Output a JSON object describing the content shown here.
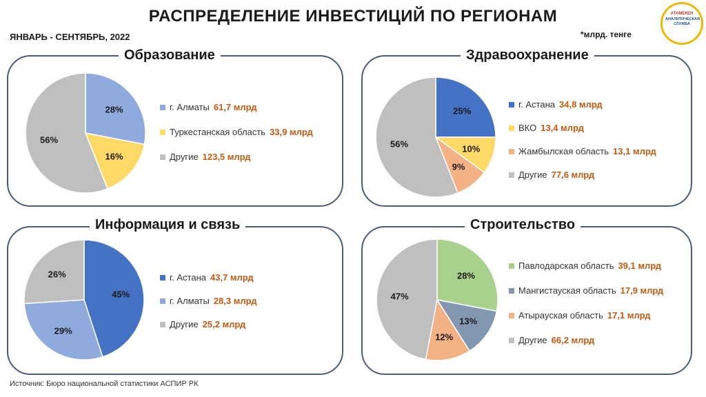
{
  "header": {
    "title": "РАСПРЕДЕЛЕНИЕ  ИНВЕСТИЦИЙ  ПО РЕГИОНАМ",
    "period": "ЯНВАРЬ - СЕНТЯБРЬ, 2022",
    "unit_note": "*млрд. тенге"
  },
  "logo": {
    "brand": "АТАМЕКЕН",
    "service": "АНАЛИТИЧЕСКАЯ СЛУЖБА"
  },
  "source": "Источник:  Бюро национальной  статистики  АСПИР РК",
  "chart_data": [
    {
      "type": "pie",
      "title": "Образование",
      "slices": [
        {
          "name": "г. Алматы",
          "percent": 28,
          "value_label": "61,7 млрд",
          "value": 61.7,
          "color": "#8faadc"
        },
        {
          "name": "Туркестанская область",
          "percent": 16,
          "value_label": "33,9 млрд",
          "value": 33.9,
          "color": "#ffd966"
        },
        {
          "name": "Другие",
          "percent": 56,
          "value_label": "123,5 млрд",
          "value": 123.5,
          "color": "#bfbfbf"
        }
      ]
    },
    {
      "type": "pie",
      "title": "Здравоохранение",
      "slices": [
        {
          "name": "г. Астана",
          "percent": 25,
          "value_label": "34,8 млрд",
          "value": 34.8,
          "color": "#4472c4"
        },
        {
          "name": "ВКО",
          "percent": 10,
          "value_label": "13,4 млрд",
          "value": 13.4,
          "color": "#ffd966"
        },
        {
          "name": "Жамбылская область",
          "percent": 9,
          "value_label": "13,1 млрд",
          "value": 13.1,
          "color": "#f4b183"
        },
        {
          "name": "Другие",
          "percent": 56,
          "value_label": "77,6 млрд",
          "value": 77.6,
          "color": "#bfbfbf"
        }
      ]
    },
    {
      "type": "pie",
      "title": "Информация и связь",
      "slices": [
        {
          "name": "г. Астана",
          "percent": 45,
          "value_label": "43,7 млрд",
          "value": 43.7,
          "color": "#4472c4"
        },
        {
          "name": "г. Алматы",
          "percent": 29,
          "value_label": "28,3 млрд",
          "value": 28.3,
          "color": "#8faadc"
        },
        {
          "name": "Другие",
          "percent": 26,
          "value_label": "25,2 млрд",
          "value": 25.2,
          "color": "#bfbfbf"
        }
      ]
    },
    {
      "type": "pie",
      "title": "Строительство",
      "slices": [
        {
          "name": "Павлодарская область",
          "percent": 28,
          "value_label": "39,1 млрд",
          "value": 39.1,
          "color": "#a9d18e"
        },
        {
          "name": "Мангистауская область",
          "percent": 13,
          "value_label": "17,9 млрд",
          "value": 17.9,
          "color": "#8497b0"
        },
        {
          "name": "Атырауская область",
          "percent": 12,
          "value_label": "17,1 млрд",
          "value": 17.1,
          "color": "#f4b183"
        },
        {
          "name": "Другие",
          "percent": 47,
          "value_label": "66,2 млрд",
          "value": 66.2,
          "color": "#bfbfbf"
        }
      ]
    }
  ]
}
